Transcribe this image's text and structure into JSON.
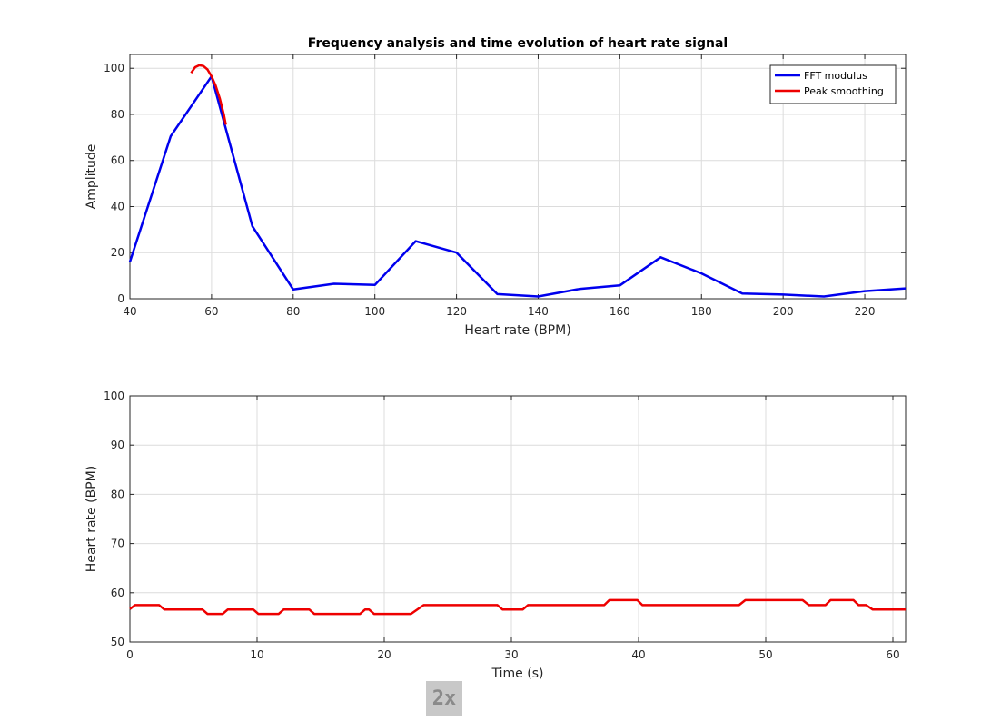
{
  "chart_data": [
    {
      "type": "line",
      "title": "Frequency analysis and time evolution of heart rate signal",
      "xlabel": "Heart rate (BPM)",
      "ylabel": "Amplitude",
      "xlim": [
        40,
        230
      ],
      "ylim": [
        0,
        106
      ],
      "xticks": [
        40,
        60,
        80,
        100,
        120,
        140,
        160,
        180,
        200,
        220
      ],
      "yticks": [
        0,
        20,
        40,
        60,
        80,
        100
      ],
      "grid": true,
      "legend_position": "top-right",
      "series": [
        {
          "name": "FFT modulus",
          "color": "#0000ee",
          "x": [
            40,
            50,
            60,
            70,
            80,
            90,
            100,
            110,
            120,
            130,
            140,
            150,
            160,
            170,
            180,
            190,
            200,
            210,
            220,
            230
          ],
          "y": [
            16,
            70.5,
            96.5,
            31.5,
            4,
            6.5,
            6,
            25,
            20,
            2,
            1,
            4.2,
            5.8,
            18,
            11,
            2.3,
            1.8,
            1,
            3.3,
            4.5
          ]
        },
        {
          "name": "Peak smoothing",
          "color": "#ee0000",
          "x": [
            55,
            56,
            57,
            58,
            59,
            60,
            61,
            62,
            63,
            63.5
          ],
          "y": [
            98,
            100.5,
            101.3,
            101,
            99.5,
            96.5,
            92.5,
            87,
            80,
            75.5
          ]
        }
      ]
    },
    {
      "type": "line",
      "title": "",
      "xlabel": "Time (s)",
      "ylabel": "Heart rate (BPM)",
      "xlim": [
        0,
        61
      ],
      "ylim": [
        50,
        100
      ],
      "xticks": [
        0,
        10,
        20,
        30,
        40,
        50,
        60
      ],
      "yticks": [
        50,
        60,
        70,
        80,
        90,
        100
      ],
      "grid": true,
      "series": [
        {
          "name": "",
          "color": "#ee0000",
          "x": [
            0,
            0.4,
            2.3,
            2.7,
            5.7,
            6.1,
            7.3,
            7.7,
            9.7,
            10.1,
            11.7,
            12.1,
            14.1,
            14.5,
            18.1,
            18.5,
            18.8,
            19.2,
            22.1,
            23.1,
            28.9,
            29.3,
            30.9,
            31.3,
            37.3,
            37.7,
            39.9,
            40.3,
            47.9,
            48.4,
            52.9,
            53.4,
            54.7,
            55.1,
            56.9,
            57.3,
            57.9,
            58.4,
            61
          ],
          "y": [
            56.7,
            57.5,
            57.5,
            56.6,
            56.6,
            55.7,
            55.7,
            56.6,
            56.6,
            55.7,
            55.7,
            56.6,
            56.6,
            55.7,
            55.7,
            56.6,
            56.6,
            55.7,
            55.7,
            57.5,
            57.5,
            56.6,
            56.6,
            57.5,
            57.5,
            58.5,
            58.5,
            57.5,
            57.5,
            58.5,
            58.5,
            57.5,
            57.5,
            58.5,
            58.5,
            57.5,
            57.5,
            56.6,
            56.6
          ]
        }
      ]
    }
  ],
  "controls": {
    "speed_label": "2x"
  }
}
